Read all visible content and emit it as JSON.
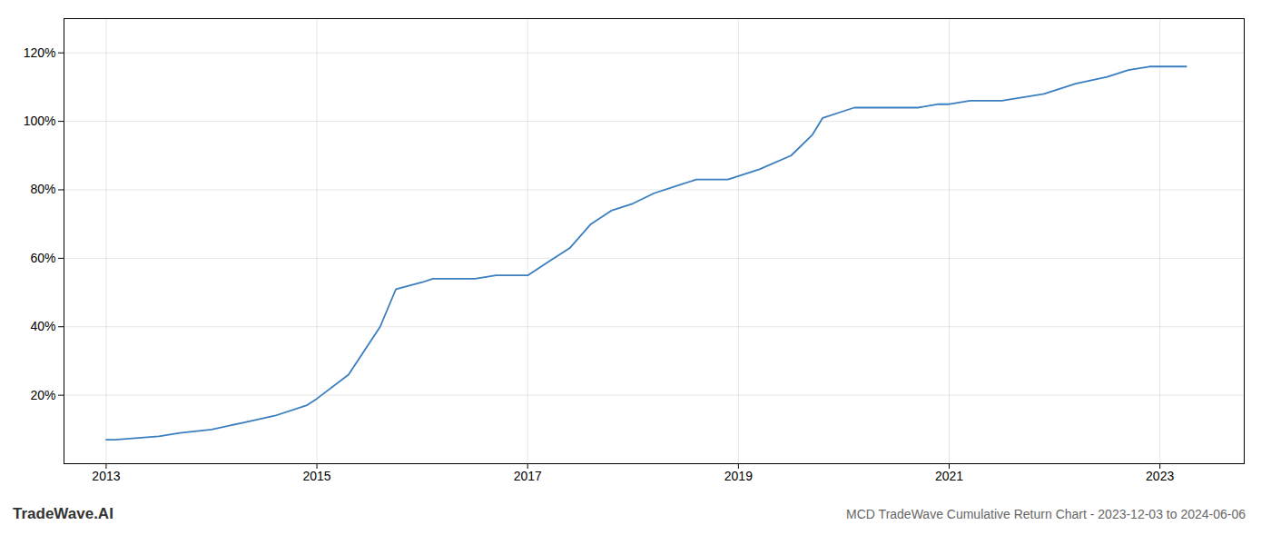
{
  "chart_data": {
    "type": "line",
    "title": "MCD TradeWave Cumulative Return Chart - 2023-12-03 to 2024-06-06",
    "annotations": [
      "TradeWave.AI"
    ],
    "x": [
      2013.0,
      2013.08,
      2013.5,
      2013.7,
      2014.0,
      2014.3,
      2014.6,
      2014.9,
      2015.0,
      2015.3,
      2015.6,
      2015.75,
      2016.0,
      2016.1,
      2016.2,
      2016.5,
      2016.7,
      2016.9,
      2017.0,
      2017.2,
      2017.4,
      2017.6,
      2017.8,
      2018.0,
      2018.2,
      2018.4,
      2018.6,
      2018.9,
      2019.0,
      2019.2,
      2019.5,
      2019.7,
      2019.8,
      2020.0,
      2020.1,
      2020.3,
      2020.5,
      2020.7,
      2020.9,
      2021.0,
      2021.2,
      2021.5,
      2021.7,
      2021.9,
      2022.0,
      2022.2,
      2022.5,
      2022.7,
      2022.9,
      2023.0,
      2023.25
    ],
    "values": [
      7,
      7,
      8,
      9,
      10,
      12,
      14,
      17,
      19,
      26,
      40,
      51,
      53,
      54,
      54,
      54,
      55,
      55,
      55,
      59,
      63,
      70,
      74,
      76,
      79,
      81,
      83,
      83,
      84,
      86,
      90,
      96,
      101,
      103,
      104,
      104,
      104,
      104,
      105,
      105,
      106,
      106,
      107,
      108,
      109,
      111,
      113,
      115,
      116,
      116,
      116
    ],
    "color": "#3a7ebf",
    "xlim": [
      2012.6,
      2023.8
    ],
    "xticks": [
      2013,
      2015,
      2017,
      2019,
      2021,
      2023
    ],
    "ylim": [
      0,
      130
    ],
    "yticks": [
      {
        "value": 20,
        "label": "20%"
      },
      {
        "value": 40,
        "label": "40%"
      },
      {
        "value": 60,
        "label": "60%"
      },
      {
        "value": 80,
        "label": "80%"
      },
      {
        "value": 100,
        "label": "100%"
      },
      {
        "value": 120,
        "label": "120%"
      }
    ],
    "grid": true
  }
}
